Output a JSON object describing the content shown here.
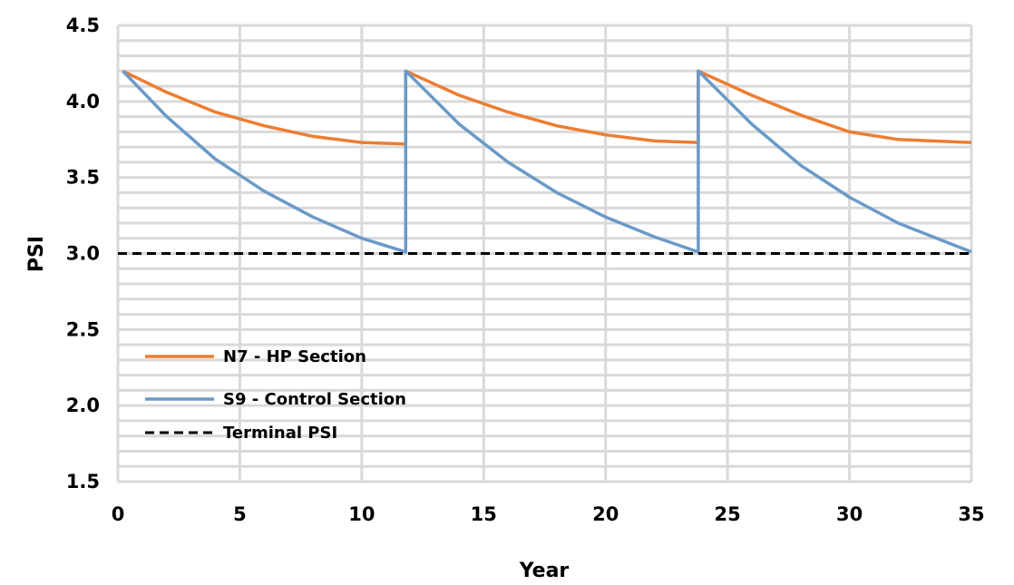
{
  "chart_data": {
    "type": "line",
    "title": "",
    "xlabel": "Year",
    "ylabel": "PSI",
    "xlim": [
      0,
      35
    ],
    "ylim": [
      1.5,
      4.5
    ],
    "x_ticks": [
      0,
      5,
      10,
      15,
      20,
      25,
      30,
      35
    ],
    "x_tick_labels": [
      "0",
      "5",
      "10",
      "15",
      "20",
      "25",
      "30",
      "35"
    ],
    "y_ticks": [
      1.5,
      2.0,
      2.5,
      3.0,
      3.5,
      4.0,
      4.5
    ],
    "y_tick_labels": [
      "1.5",
      "2.0",
      "2.5",
      "3.0",
      "3.5",
      "4.0",
      "4.5"
    ],
    "grid": true,
    "legend_position": "lower-left",
    "series": [
      {
        "name": "N7 - HP Section",
        "color": "#ED7D31",
        "dash": "solid",
        "x": [
          0.2,
          2,
          4,
          6,
          8,
          10,
          11.8,
          11.8,
          14,
          16,
          18,
          20,
          22,
          23.8,
          23.8,
          26,
          28,
          30,
          32,
          35
        ],
        "y": [
          4.2,
          4.06,
          3.93,
          3.84,
          3.77,
          3.73,
          3.72,
          4.2,
          4.04,
          3.93,
          3.84,
          3.78,
          3.74,
          3.73,
          4.2,
          4.04,
          3.91,
          3.8,
          3.75,
          3.73
        ]
      },
      {
        "name": "S9 - Control Section",
        "color": "#6A9AC8",
        "dash": "solid",
        "x": [
          0.2,
          2,
          4,
          6,
          8,
          10,
          11.8,
          11.8,
          14,
          16,
          18,
          20,
          22,
          23.8,
          23.8,
          26,
          28,
          30,
          32,
          35
        ],
        "y": [
          4.2,
          3.9,
          3.62,
          3.41,
          3.24,
          3.1,
          3.01,
          4.2,
          3.85,
          3.6,
          3.4,
          3.24,
          3.11,
          3.01,
          4.2,
          3.85,
          3.58,
          3.37,
          3.2,
          3.01
        ]
      },
      {
        "name": "Terminal PSI",
        "color": "#000000",
        "dash": "dashed",
        "x": [
          0,
          35
        ],
        "y": [
          3.0,
          3.0
        ]
      }
    ]
  }
}
